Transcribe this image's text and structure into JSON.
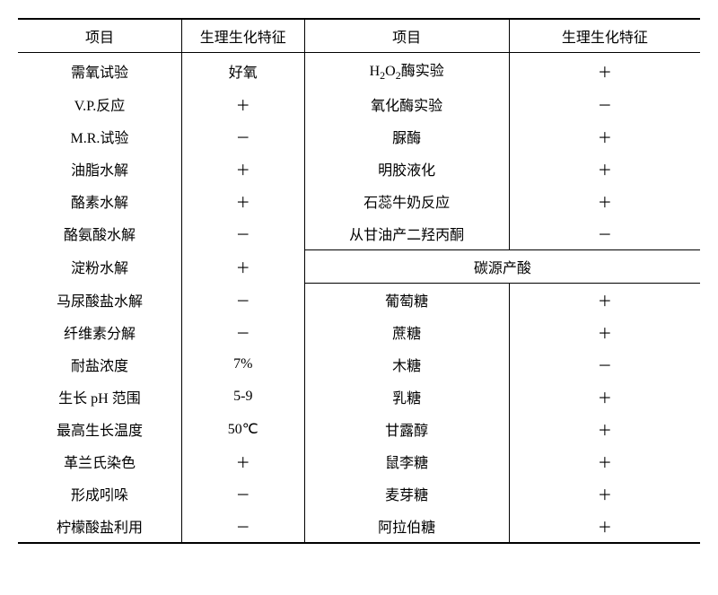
{
  "table": {
    "headers": {
      "col1": "项目",
      "col2": "生理生化特征",
      "col3": "项目",
      "col4": "生理生化特征"
    },
    "rows": [
      {
        "l_item": "需氧试验",
        "l_val": "好氧",
        "r_item": "H₂O₂酶实验",
        "r_val": "＋"
      },
      {
        "l_item": "V.P.反应",
        "l_val": "＋",
        "r_item": "氧化酶实验",
        "r_val": "－"
      },
      {
        "l_item": "M.R.试验",
        "l_val": "－",
        "r_item": "脲酶",
        "r_val": "＋"
      },
      {
        "l_item": "油脂水解",
        "l_val": "＋",
        "r_item": "明胶液化",
        "r_val": "＋"
      },
      {
        "l_item": "酪素水解",
        "l_val": "＋",
        "r_item": "石蕊牛奶反应",
        "r_val": "＋"
      },
      {
        "l_item": "酪氨酸水解",
        "l_val": "－",
        "r_item": "从甘油产二羟丙酮",
        "r_val": "－"
      },
      {
        "l_item": "淀粉水解",
        "l_val": "＋",
        "section": "碳源产酸"
      },
      {
        "l_item": "马尿酸盐水解",
        "l_val": "－",
        "r_item": "葡萄糖",
        "r_val": "＋"
      },
      {
        "l_item": "纤维素分解",
        "l_val": "－",
        "r_item": "蔗糖",
        "r_val": "＋"
      },
      {
        "l_item": "耐盐浓度",
        "l_val": "7%",
        "r_item": "木糖",
        "r_val": "－"
      },
      {
        "l_item": "生长 pH 范围",
        "l_val": "5-9",
        "r_item": "乳糖",
        "r_val": "＋"
      },
      {
        "l_item": "最高生长温度",
        "l_val": "50℃",
        "r_item": "甘露醇",
        "r_val": "＋"
      },
      {
        "l_item": "革兰氏染色",
        "l_val": "＋",
        "r_item": "鼠李糖",
        "r_val": "＋"
      },
      {
        "l_item": "形成吲哚",
        "l_val": "－",
        "r_item": "麦芽糖",
        "r_val": "＋"
      },
      {
        "l_item": "柠檬酸盐利用",
        "l_val": "－",
        "r_item": "阿拉伯糖",
        "r_val": "＋"
      }
    ],
    "colors": {
      "border": "#000000",
      "background": "#ffffff",
      "text": "#000000"
    },
    "fonts": {
      "family": "SimSun",
      "size_pt": 16
    }
  }
}
